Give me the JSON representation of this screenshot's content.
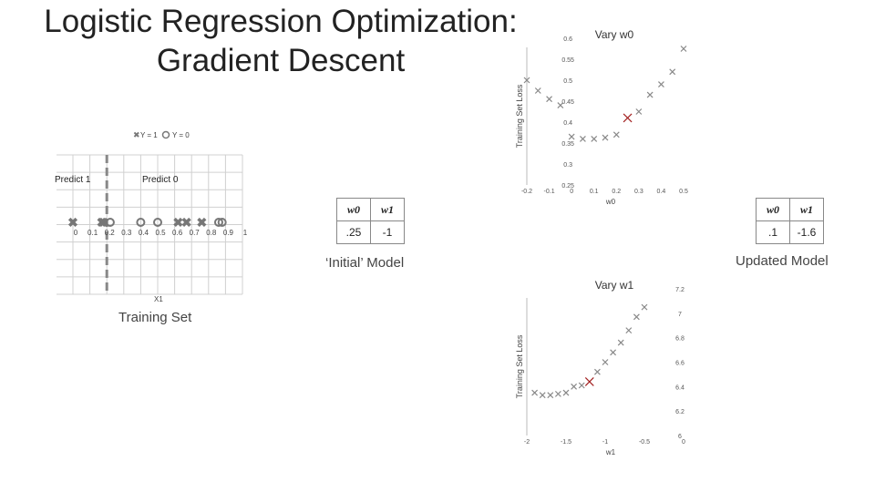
{
  "slide": {
    "title_line1": "Logistic Regression Optimization:",
    "title_line2": "Gradient Descent"
  },
  "training_plot": {
    "legend": {
      "y1": "Y = 1",
      "y0": "Y = 0"
    },
    "predict1": "Predict 1",
    "predict0": "Predict 0",
    "xlabel": "X1",
    "ticks": [
      "0",
      "0.1",
      "0.2",
      "0.3",
      "0.4",
      "0.5",
      "0.6",
      "0.7",
      "0.8",
      "0.9",
      "1"
    ],
    "caption": "Training Set",
    "boundary_x": 0.2,
    "points_y1": [
      0.0,
      0.17,
      0.18,
      0.62,
      0.67,
      0.76
    ],
    "points_y0": [
      0.22,
      0.4,
      0.5,
      0.86,
      0.88
    ]
  },
  "initial_model": {
    "headers": [
      "w0",
      "w1"
    ],
    "values": [
      ".25",
      "-1"
    ],
    "caption": "‘Initial’ Model"
  },
  "updated_model": {
    "headers": [
      "w0",
      "w1"
    ],
    "values": [
      ".1",
      "-1.6"
    ],
    "caption": "Updated Model"
  },
  "chart_data": [
    {
      "type": "scatter",
      "title": "Vary w0",
      "xlabel": "w0",
      "ylabel": "Training Set Loss",
      "xlim": [
        -0.2,
        0.5
      ],
      "ylim": [
        0.25,
        0.6
      ],
      "xticks": [
        "-0.2",
        "-0.1",
        "0",
        "0.1",
        "0.2",
        "0.3",
        "0.4",
        "0.5"
      ],
      "yticks": [
        "0.25",
        "0.3",
        "0.35",
        "0.4",
        "0.45",
        "0.5",
        "0.55",
        "0.6"
      ],
      "x": [
        -0.2,
        -0.15,
        -0.1,
        -0.05,
        0,
        0.05,
        0.1,
        0.15,
        0.2,
        0.25,
        0.3,
        0.35,
        0.4,
        0.45,
        0.5
      ],
      "y": [
        0.5,
        0.475,
        0.455,
        0.44,
        0.365,
        0.36,
        0.36,
        0.363,
        0.37,
        0.41,
        0.425,
        0.465,
        0.49,
        0.52,
        0.575
      ],
      "highlight_x": 0.25
    },
    {
      "type": "scatter",
      "title": "Vary w1",
      "xlabel": "w1",
      "ylabel": "Training Set Loss",
      "xlim": [
        -2,
        0
      ],
      "ylim": [
        6,
        7.2
      ],
      "xticks": [
        "-2",
        "-1.5",
        "-1",
        "-0.5",
        "0"
      ],
      "yticks": [
        "6",
        "6.2",
        "6.4",
        "6.6",
        "6.8",
        "7",
        "7.2"
      ],
      "x": [
        -1.9,
        -1.8,
        -1.7,
        -1.6,
        -1.5,
        -1.4,
        -1.3,
        -1.2,
        -1.1,
        -1.0,
        -0.9,
        -0.8,
        -0.7,
        -0.6,
        -0.5
      ],
      "y": [
        6.35,
        6.33,
        6.33,
        6.34,
        6.35,
        6.4,
        6.41,
        6.44,
        6.52,
        6.6,
        6.68,
        6.76,
        6.86,
        6.97,
        7.05
      ],
      "highlight_x": -1.2
    }
  ]
}
